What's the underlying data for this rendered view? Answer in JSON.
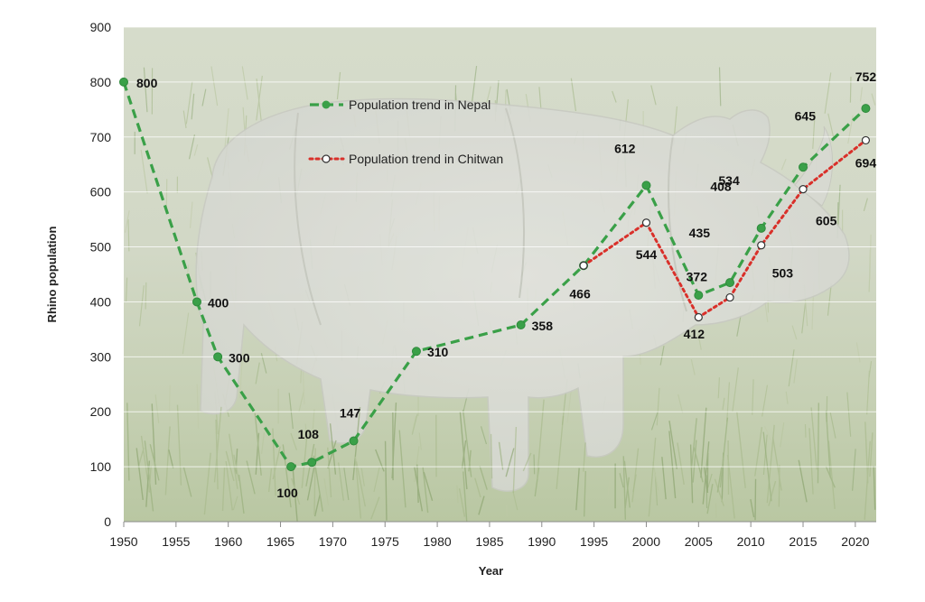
{
  "chart_data": {
    "type": "line",
    "xlabel": "Year",
    "ylabel": "Rhino population",
    "xlim": [
      1950,
      2022
    ],
    "ylim": [
      0,
      900
    ],
    "x_ticks": [
      "1950",
      "1955",
      "1960",
      "1965",
      "1970",
      "1975",
      "1980",
      "1985",
      "1990",
      "1995",
      "2000",
      "2005",
      "2010",
      "2015",
      "2020"
    ],
    "y_ticks": [
      "0",
      "100",
      "200",
      "300",
      "400",
      "500",
      "600",
      "700",
      "800",
      "900"
    ],
    "grid": "horizontal",
    "background": "photo of a greater one-horned rhinoceros in grassland",
    "legend_position": "upper-center",
    "series": [
      {
        "name": "Population trend in Nepal",
        "color": "#3aa048",
        "line_style": "dashed",
        "marker": "filled-circle",
        "points": [
          {
            "x": 1950,
            "y": 800,
            "label": "800"
          },
          {
            "x": 1957,
            "y": 400,
            "label": "400"
          },
          {
            "x": 1959,
            "y": 300,
            "label": "300"
          },
          {
            "x": 1966,
            "y": 100,
            "label": "100"
          },
          {
            "x": 1968,
            "y": 108,
            "label": "108"
          },
          {
            "x": 1972,
            "y": 147,
            "label": "147"
          },
          {
            "x": 1978,
            "y": 310,
            "label": "310"
          },
          {
            "x": 1988,
            "y": 358,
            "label": "358"
          },
          {
            "x": 1994,
            "y": 466,
            "label": "466"
          },
          {
            "x": 2000,
            "y": 612,
            "label": "612"
          },
          {
            "x": 2005,
            "y": 412,
            "label": "412"
          },
          {
            "x": 2008,
            "y": 435,
            "label": "435"
          },
          {
            "x": 2011,
            "y": 534,
            "label": "534"
          },
          {
            "x": 2015,
            "y": 645,
            "label": "645"
          },
          {
            "x": 2021,
            "y": 752,
            "label": "752"
          }
        ]
      },
      {
        "name": "Population trend in Chitwan",
        "color": "#d9302a",
        "line_style": "dotted",
        "marker": "open-circle",
        "points": [
          {
            "x": 1994,
            "y": 466,
            "label": ""
          },
          {
            "x": 2000,
            "y": 544,
            "label": "544"
          },
          {
            "x": 2005,
            "y": 372,
            "label": "372"
          },
          {
            "x": 2008,
            "y": 408,
            "label": "408"
          },
          {
            "x": 2011,
            "y": 503,
            "label": "503"
          },
          {
            "x": 2015,
            "y": 605,
            "label": "605"
          },
          {
            "x": 2021,
            "y": 694,
            "label": "694"
          }
        ]
      }
    ]
  }
}
